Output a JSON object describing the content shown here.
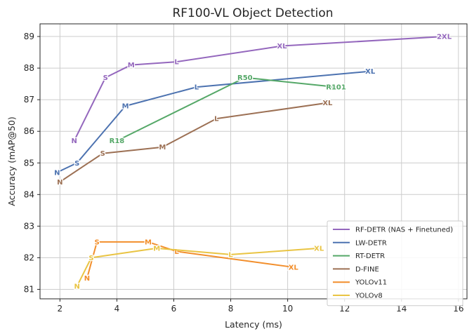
{
  "chart_data": {
    "type": "line",
    "title": "RF100-VL Object Detection",
    "xlabel": "Latency (ms)",
    "ylabel": "Accuracy (mAP@50)",
    "xlim": [
      1.3,
      16.3
    ],
    "ylim": [
      80.7,
      89.4
    ],
    "xticks": [
      2,
      4,
      6,
      8,
      10,
      12,
      14,
      16
    ],
    "yticks": [
      81,
      82,
      83,
      84,
      85,
      86,
      87,
      88,
      89
    ],
    "grid": true,
    "legend_position": "lower-right",
    "series": [
      {
        "name": "RF-DETR (NAS + Finetuned)",
        "color": "#9467bd",
        "points": [
          {
            "label": "N",
            "x": 2.5,
            "y": 85.7
          },
          {
            "label": "S",
            "x": 3.6,
            "y": 87.7
          },
          {
            "label": "M",
            "x": 4.5,
            "y": 88.1
          },
          {
            "label": "L",
            "x": 6.1,
            "y": 88.2
          },
          {
            "label": "XL",
            "x": 9.8,
            "y": 88.7
          },
          {
            "label": "2XL",
            "x": 15.5,
            "y": 89.0
          }
        ]
      },
      {
        "name": "LW-DETR",
        "color": "#4c72b0",
        "points": [
          {
            "label": "N",
            "x": 1.9,
            "y": 84.7
          },
          {
            "label": "S",
            "x": 2.6,
            "y": 85.0
          },
          {
            "label": "M",
            "x": 4.3,
            "y": 86.8
          },
          {
            "label": "L",
            "x": 6.8,
            "y": 87.4
          },
          {
            "label": "XL",
            "x": 12.9,
            "y": 87.9
          }
        ]
      },
      {
        "name": "RT-DETR",
        "color": "#55a868",
        "points": [
          {
            "label": "R18",
            "x": 4.0,
            "y": 85.7
          },
          {
            "label": "R50",
            "x": 8.5,
            "y": 87.7
          },
          {
            "label": "R101",
            "x": 11.7,
            "y": 87.4
          }
        ]
      },
      {
        "name": "D-FINE",
        "color": "#9c7054",
        "points": [
          {
            "label": "N",
            "x": 2.0,
            "y": 84.4
          },
          {
            "label": "S",
            "x": 3.5,
            "y": 85.3
          },
          {
            "label": "M",
            "x": 5.6,
            "y": 85.5
          },
          {
            "label": "L",
            "x": 7.5,
            "y": 86.4
          },
          {
            "label": "XL",
            "x": 11.4,
            "y": 86.9
          }
        ]
      },
      {
        "name": "YOLOv11",
        "color": "#f28e2b",
        "points": [
          {
            "label": "N",
            "x": 2.95,
            "y": 81.35
          },
          {
            "label": "S",
            "x": 3.3,
            "y": 82.5
          },
          {
            "label": "M",
            "x": 5.1,
            "y": 82.5
          },
          {
            "label": "L",
            "x": 6.1,
            "y": 82.2
          },
          {
            "label": "XL",
            "x": 10.2,
            "y": 81.7
          }
        ]
      },
      {
        "name": "YOLOv8",
        "color": "#e9c443",
        "points": [
          {
            "label": "N",
            "x": 2.6,
            "y": 81.1
          },
          {
            "label": "S",
            "x": 3.1,
            "y": 82.0
          },
          {
            "label": "M",
            "x": 5.4,
            "y": 82.3
          },
          {
            "label": "L",
            "x": 8.0,
            "y": 82.1
          },
          {
            "label": "XL",
            "x": 11.1,
            "y": 82.3
          }
        ]
      }
    ]
  }
}
